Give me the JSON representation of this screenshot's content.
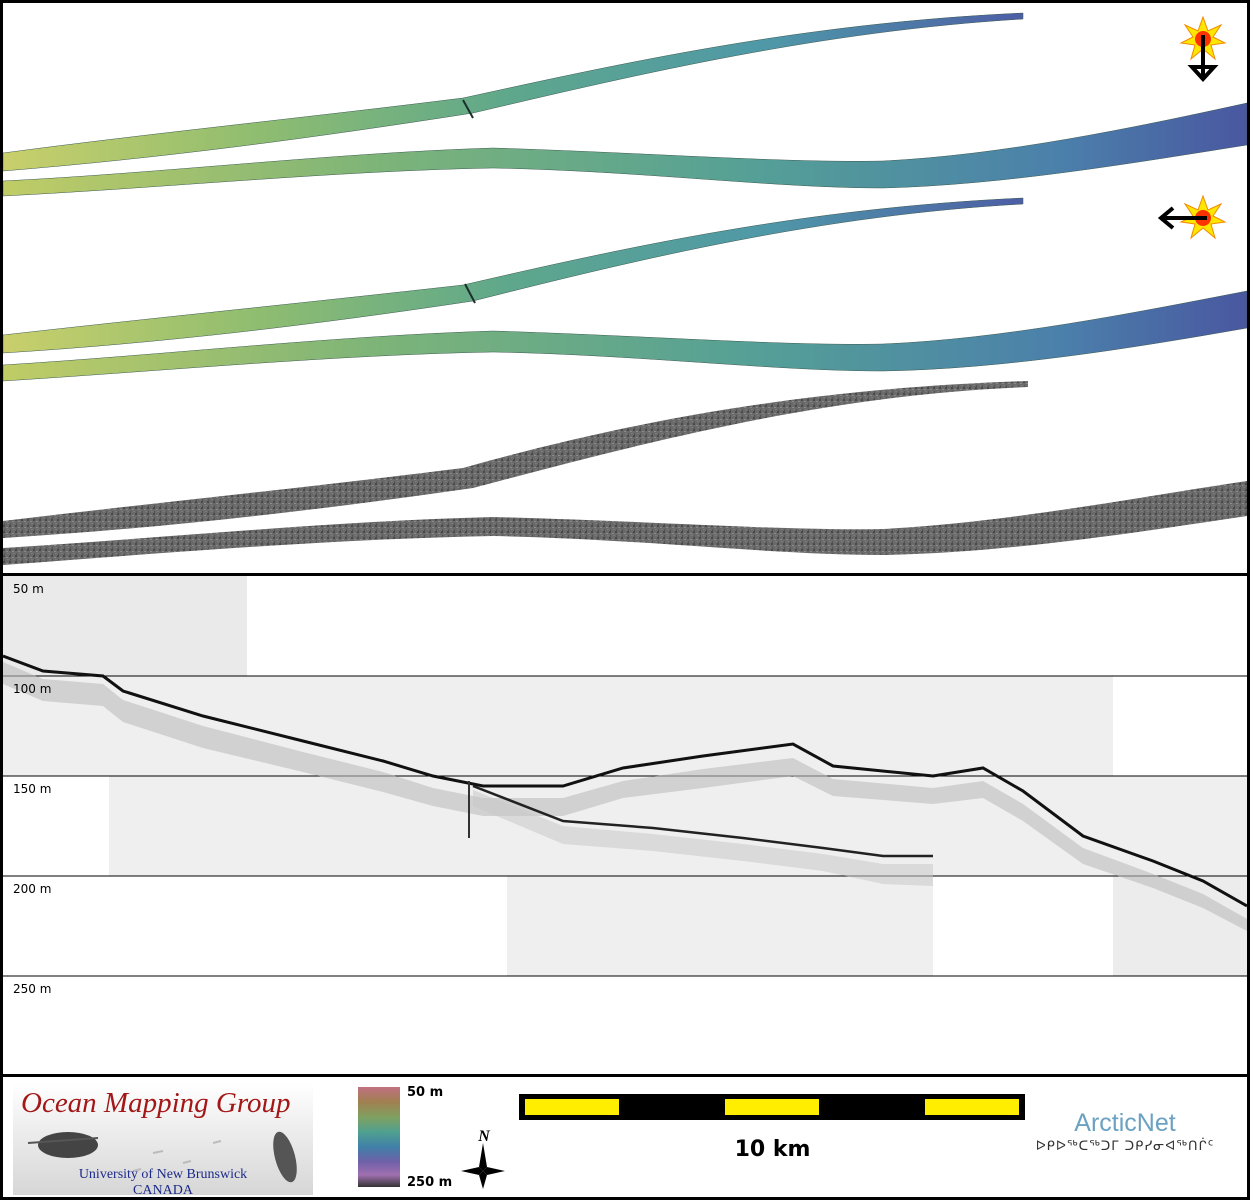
{
  "profile": {
    "depth_labels": [
      "50 m",
      "100 m",
      "150 m",
      "200 m",
      "250 m"
    ]
  },
  "legend": {
    "org_name": "Ocean Mapping Group",
    "university": "University of New Brunswick",
    "country": "CANADA",
    "colorbar_top": "50 m",
    "colorbar_bottom": "250 m",
    "north_label": "N",
    "scale_label": "10 km",
    "network_name": "ArcticNet",
    "network_name_syllabics": "ᐅᑭᐅᖅᑕᖅᑐᒥ ᑐᑭᓯᓂᐊᖅᑎᒌᑦ"
  },
  "colors": {
    "swath_west": "#c7cc6a",
    "swath_mid": "#5fa88e",
    "swath_east": "#4b5fa5",
    "backscatter": "#666666",
    "scale_fill": "#ffee00",
    "org_red": "#a31717",
    "org_blue": "#1c2a8a",
    "network_blue": "#6ba1c2"
  }
}
